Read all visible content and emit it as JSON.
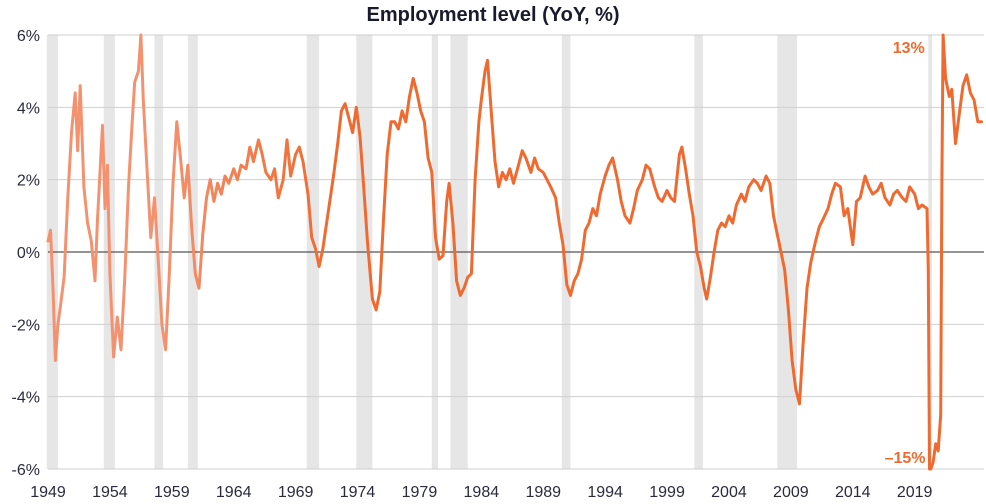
{
  "chart_data": {
    "type": "line",
    "title": "Employment level (YoY, %)",
    "xlabel": "",
    "ylabel": "",
    "xlim": [
      1949,
      2024.6
    ],
    "ylim": [
      -6,
      6
    ],
    "y_ticks": [
      6,
      4,
      2,
      0,
      -2,
      -4,
      -6
    ],
    "y_tick_labels": [
      "6%",
      "4%",
      "2%",
      "0%",
      "-2%",
      "-4%",
      "-6%"
    ],
    "x_ticks": [
      1949,
      1954,
      1959,
      1964,
      1969,
      1974,
      1979,
      1984,
      1989,
      1994,
      1999,
      2004,
      2009,
      2014,
      2019
    ],
    "x_tick_labels": [
      "1949",
      "1954",
      "1959",
      "1964",
      "1969",
      "1974",
      "1979",
      "1984",
      "1989",
      "1994",
      "1999",
      "2004",
      "2009",
      "2014",
      "2019"
    ],
    "grid": "horizontal",
    "recession_shading": [
      [
        1948.9,
        1949.8
      ],
      [
        1953.5,
        1954.4
      ],
      [
        1957.6,
        1958.3
      ],
      [
        1960.3,
        1961.1
      ],
      [
        1969.9,
        1970.9
      ],
      [
        1973.9,
        1975.2
      ],
      [
        1980.0,
        1980.5
      ],
      [
        1981.5,
        1982.9
      ],
      [
        1990.5,
        1991.2
      ],
      [
        2001.2,
        2001.9
      ],
      [
        2007.9,
        2009.5
      ],
      [
        2020.1,
        2020.4
      ]
    ],
    "colors": {
      "line_early": "#f4926f",
      "line_late": "#f06a30",
      "recession": "#e6e6e6",
      "grid": "#cfcfcf",
      "zero_line": "#555555"
    },
    "annotations": [
      {
        "text": "13%",
        "x": 2020.3,
        "y": 6.0
      },
      {
        "text": "–15%",
        "x": 2020.2,
        "y": -6.0
      }
    ],
    "series": [
      {
        "points": [
          [
            1949.0,
            0.3
          ],
          [
            1949.2,
            0.6
          ],
          [
            1949.4,
            -1.0
          ],
          [
            1949.6,
            -3.0
          ],
          [
            1949.8,
            -2.0
          ],
          [
            1950.0,
            -1.5
          ],
          [
            1950.3,
            -0.7
          ],
          [
            1950.6,
            1.5
          ],
          [
            1950.9,
            3.3
          ],
          [
            1951.2,
            4.4
          ],
          [
            1951.4,
            2.8
          ],
          [
            1951.6,
            4.6
          ],
          [
            1951.9,
            1.8
          ],
          [
            1952.2,
            0.8
          ],
          [
            1952.5,
            0.3
          ],
          [
            1952.8,
            -0.8
          ],
          [
            1953.0,
            0.9
          ],
          [
            1953.2,
            2.2
          ],
          [
            1953.4,
            3.5
          ],
          [
            1953.6,
            1.2
          ],
          [
            1953.8,
            2.4
          ],
          [
            1954.0,
            -0.6
          ],
          [
            1954.3,
            -2.9
          ],
          [
            1954.6,
            -1.8
          ],
          [
            1954.9,
            -2.7
          ],
          [
            1955.2,
            -0.7
          ],
          [
            1955.5,
            1.8
          ],
          [
            1955.8,
            3.6
          ],
          [
            1956.0,
            4.7
          ],
          [
            1956.3,
            5.0
          ],
          [
            1956.5,
            6.0
          ],
          [
            1956.7,
            4.2
          ],
          [
            1957.0,
            2.3
          ],
          [
            1957.3,
            0.4
          ],
          [
            1957.6,
            1.5
          ],
          [
            1957.9,
            -0.2
          ],
          [
            1958.2,
            -2.0
          ],
          [
            1958.5,
            -2.7
          ],
          [
            1958.8,
            -0.6
          ],
          [
            1959.1,
            1.9
          ],
          [
            1959.4,
            3.6
          ],
          [
            1959.7,
            2.6
          ],
          [
            1960.0,
            1.5
          ],
          [
            1960.3,
            2.4
          ],
          [
            1960.6,
            0.7
          ],
          [
            1960.9,
            -0.6
          ],
          [
            1961.2,
            -1.0
          ],
          [
            1961.5,
            0.5
          ],
          [
            1961.8,
            1.5
          ],
          [
            1962.1,
            2.0
          ],
          [
            1962.4,
            1.4
          ],
          [
            1962.7,
            1.9
          ],
          [
            1963.0,
            1.6
          ],
          [
            1963.3,
            2.1
          ],
          [
            1963.6,
            1.9
          ],
          [
            1964.0,
            2.3
          ],
          [
            1964.3,
            2.0
          ],
          [
            1964.6,
            2.4
          ],
          [
            1965.0,
            2.3
          ],
          [
            1965.3,
            2.9
          ],
          [
            1965.6,
            2.5
          ],
          [
            1966.0,
            3.1
          ],
          [
            1966.3,
            2.7
          ],
          [
            1966.6,
            2.2
          ],
          [
            1967.0,
            2.0
          ],
          [
            1967.3,
            2.3
          ],
          [
            1967.6,
            1.5
          ],
          [
            1968.0,
            2.0
          ],
          [
            1968.3,
            3.1
          ],
          [
            1968.6,
            2.1
          ],
          [
            1969.0,
            2.7
          ],
          [
            1969.3,
            2.9
          ],
          [
            1969.6,
            2.5
          ],
          [
            1970.0,
            1.6
          ],
          [
            1970.3,
            0.4
          ],
          [
            1970.6,
            0.1
          ],
          [
            1970.9,
            -0.4
          ],
          [
            1971.2,
            0.1
          ],
          [
            1971.5,
            0.8
          ],
          [
            1971.8,
            1.5
          ],
          [
            1972.1,
            2.2
          ],
          [
            1972.4,
            3.0
          ],
          [
            1972.7,
            3.9
          ],
          [
            1973.0,
            4.1
          ],
          [
            1973.3,
            3.7
          ],
          [
            1973.6,
            3.3
          ],
          [
            1973.9,
            4.0
          ],
          [
            1974.2,
            3.2
          ],
          [
            1974.5,
            1.8
          ],
          [
            1974.8,
            0.3
          ],
          [
            1975.0,
            -0.5
          ],
          [
            1975.2,
            -1.3
          ],
          [
            1975.5,
            -1.6
          ],
          [
            1975.8,
            -1.1
          ],
          [
            1976.1,
            0.9
          ],
          [
            1976.4,
            2.7
          ],
          [
            1976.7,
            3.6
          ],
          [
            1977.0,
            3.6
          ],
          [
            1977.3,
            3.4
          ],
          [
            1977.6,
            3.9
          ],
          [
            1977.9,
            3.6
          ],
          [
            1978.2,
            4.3
          ],
          [
            1978.5,
            4.8
          ],
          [
            1978.8,
            4.4
          ],
          [
            1979.1,
            3.9
          ],
          [
            1979.4,
            3.6
          ],
          [
            1979.7,
            2.6
          ],
          [
            1980.0,
            2.2
          ],
          [
            1980.3,
            0.4
          ],
          [
            1980.6,
            -0.2
          ],
          [
            1980.9,
            -0.1
          ],
          [
            1981.2,
            1.4
          ],
          [
            1981.4,
            1.9
          ],
          [
            1981.7,
            0.8
          ],
          [
            1982.0,
            -0.8
          ],
          [
            1982.3,
            -1.2
          ],
          [
            1982.6,
            -1.0
          ],
          [
            1982.9,
            -0.7
          ],
          [
            1983.2,
            -0.6
          ],
          [
            1983.5,
            2.0
          ],
          [
            1983.8,
            3.6
          ],
          [
            1984.0,
            4.2
          ],
          [
            1984.3,
            5.0
          ],
          [
            1984.5,
            5.3
          ],
          [
            1984.8,
            3.9
          ],
          [
            1985.1,
            2.5
          ],
          [
            1985.4,
            1.8
          ],
          [
            1985.7,
            2.2
          ],
          [
            1986.0,
            2.0
          ],
          [
            1986.3,
            2.3
          ],
          [
            1986.6,
            1.9
          ],
          [
            1987.0,
            2.4
          ],
          [
            1987.3,
            2.8
          ],
          [
            1987.6,
            2.6
          ],
          [
            1988.0,
            2.2
          ],
          [
            1988.3,
            2.6
          ],
          [
            1988.6,
            2.3
          ],
          [
            1989.0,
            2.2
          ],
          [
            1989.3,
            2.0
          ],
          [
            1989.6,
            1.8
          ],
          [
            1990.0,
            1.5
          ],
          [
            1990.3,
            0.8
          ],
          [
            1990.6,
            0.2
          ],
          [
            1990.9,
            -0.9
          ],
          [
            1991.2,
            -1.2
          ],
          [
            1991.5,
            -0.8
          ],
          [
            1991.8,
            -0.6
          ],
          [
            1992.1,
            -0.2
          ],
          [
            1992.4,
            0.6
          ],
          [
            1992.7,
            0.8
          ],
          [
            1993.0,
            1.2
          ],
          [
            1993.3,
            1.0
          ],
          [
            1993.6,
            1.6
          ],
          [
            1994.0,
            2.1
          ],
          [
            1994.3,
            2.4
          ],
          [
            1994.6,
            2.6
          ],
          [
            1995.0,
            2.0
          ],
          [
            1995.3,
            1.4
          ],
          [
            1995.6,
            1.0
          ],
          [
            1996.0,
            0.8
          ],
          [
            1996.3,
            1.2
          ],
          [
            1996.6,
            1.7
          ],
          [
            1997.0,
            2.0
          ],
          [
            1997.3,
            2.4
          ],
          [
            1997.6,
            2.3
          ],
          [
            1998.0,
            1.8
          ],
          [
            1998.3,
            1.5
          ],
          [
            1998.6,
            1.4
          ],
          [
            1999.0,
            1.7
          ],
          [
            1999.3,
            1.5
          ],
          [
            1999.6,
            1.4
          ],
          [
            2000.0,
            2.7
          ],
          [
            2000.2,
            2.9
          ],
          [
            2000.5,
            2.3
          ],
          [
            2000.8,
            1.6
          ],
          [
            2001.1,
            1.0
          ],
          [
            2001.4,
            0.0
          ],
          [
            2001.7,
            -0.4
          ],
          [
            2002.0,
            -1.0
          ],
          [
            2002.2,
            -1.3
          ],
          [
            2002.5,
            -0.7
          ],
          [
            2002.8,
            0.0
          ],
          [
            2003.1,
            0.6
          ],
          [
            2003.4,
            0.8
          ],
          [
            2003.7,
            0.7
          ],
          [
            2004.0,
            1.0
          ],
          [
            2004.3,
            0.8
          ],
          [
            2004.6,
            1.3
          ],
          [
            2005.0,
            1.6
          ],
          [
            2005.3,
            1.4
          ],
          [
            2005.6,
            1.8
          ],
          [
            2006.0,
            2.0
          ],
          [
            2006.3,
            1.9
          ],
          [
            2006.6,
            1.7
          ],
          [
            2007.0,
            2.1
          ],
          [
            2007.3,
            1.9
          ],
          [
            2007.6,
            1.0
          ],
          [
            2007.9,
            0.5
          ],
          [
            2008.2,
            0.0
          ],
          [
            2008.5,
            -0.5
          ],
          [
            2008.8,
            -1.6
          ],
          [
            2009.1,
            -3.0
          ],
          [
            2009.4,
            -3.8
          ],
          [
            2009.7,
            -4.2
          ],
          [
            2010.0,
            -2.5
          ],
          [
            2010.3,
            -1.0
          ],
          [
            2010.6,
            -0.3
          ],
          [
            2011.0,
            0.3
          ],
          [
            2011.3,
            0.7
          ],
          [
            2011.6,
            0.9
          ],
          [
            2012.0,
            1.2
          ],
          [
            2012.3,
            1.6
          ],
          [
            2012.6,
            1.9
          ],
          [
            2013.0,
            1.8
          ],
          [
            2013.3,
            1.0
          ],
          [
            2013.6,
            1.2
          ],
          [
            2014.0,
            0.2
          ],
          [
            2014.3,
            1.4
          ],
          [
            2014.6,
            1.5
          ],
          [
            2015.0,
            2.1
          ],
          [
            2015.3,
            1.8
          ],
          [
            2015.6,
            1.6
          ],
          [
            2016.0,
            1.7
          ],
          [
            2016.3,
            1.9
          ],
          [
            2016.6,
            1.5
          ],
          [
            2017.0,
            1.3
          ],
          [
            2017.3,
            1.6
          ],
          [
            2017.6,
            1.7
          ],
          [
            2018.0,
            1.5
          ],
          [
            2018.3,
            1.4
          ],
          [
            2018.6,
            1.8
          ],
          [
            2019.0,
            1.6
          ],
          [
            2019.3,
            1.2
          ],
          [
            2019.6,
            1.3
          ],
          [
            2020.0,
            1.2
          ],
          [
            2020.1,
            -0.5
          ],
          [
            2020.2,
            -6.0
          ],
          [
            2020.3,
            -6.0
          ],
          [
            2020.5,
            -5.8
          ],
          [
            2020.7,
            -5.3
          ],
          [
            2020.9,
            -5.5
          ],
          [
            2021.1,
            -4.5
          ],
          [
            2021.2,
            2.0
          ],
          [
            2021.3,
            6.0
          ],
          [
            2021.5,
            4.8
          ],
          [
            2021.8,
            4.3
          ],
          [
            2022.0,
            4.5
          ],
          [
            2022.3,
            3.0
          ],
          [
            2022.6,
            3.8
          ],
          [
            2022.9,
            4.6
          ],
          [
            2023.2,
            4.9
          ],
          [
            2023.5,
            4.4
          ],
          [
            2023.8,
            4.2
          ],
          [
            2024.1,
            3.6
          ],
          [
            2024.4,
            3.6
          ]
        ]
      }
    ]
  }
}
